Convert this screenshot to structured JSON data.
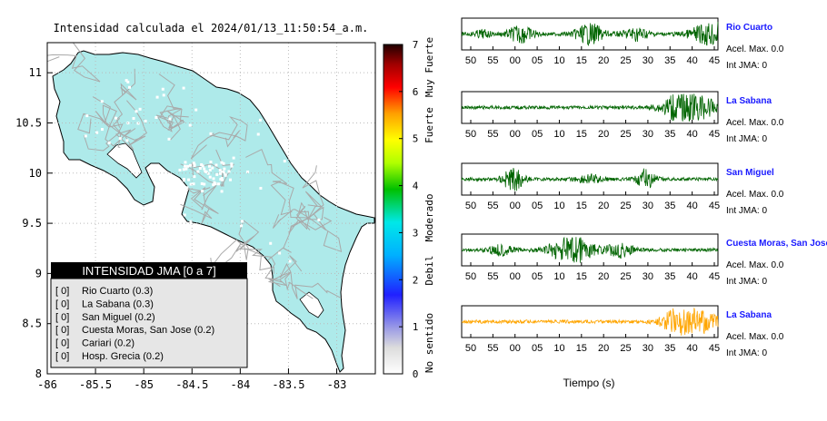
{
  "map": {
    "title": "Intensidad calculada el 2024/01/13_11:50:54_a.m.",
    "x_ticks": [
      "-86",
      "-85.5",
      "-85",
      "-84.5",
      "-84",
      "-83.5",
      "-83"
    ],
    "y_ticks": [
      "11",
      "10.5",
      "10",
      "9.5",
      "9",
      "8.5",
      "8"
    ],
    "land_color": "#aeeaea",
    "road_color": "#a9a9a9"
  },
  "legend": {
    "title": "INTENSIDAD JMA [0 a 7]",
    "items": [
      {
        "code": "[ 0]",
        "label": "Rio Cuarto (0.3)"
      },
      {
        "code": "[ 0]",
        "label": "La Sabana (0.3)"
      },
      {
        "code": "[ 0]",
        "label": "San Miguel (0.2)"
      },
      {
        "code": "[ 0]",
        "label": "Cuesta Moras, San Jose (0.2)"
      },
      {
        "code": "[ 0]",
        "label": "Cariari (0.2)"
      },
      {
        "code": "[ 0]",
        "label": "Hosp. Grecia (0.2)"
      }
    ]
  },
  "colorbar": {
    "ticks": [
      "7",
      "6",
      "5",
      "4",
      "3",
      "2",
      "1",
      "0"
    ],
    "labels": [
      "Muy Fuerte",
      "Fuerte",
      "Moderado",
      "Debil",
      "No sentido"
    ],
    "range": [
      0,
      7
    ]
  },
  "waveforms": {
    "xlabel": "Tiempo (s)",
    "panels": [
      {
        "station": "Rio Cuarto",
        "acel": "Acel. Max. 0.0",
        "int": "Int JMA: 0",
        "color": "#006400",
        "ticks": [
          "50",
          "55",
          "00",
          "05",
          "10",
          "15",
          "20",
          "25",
          "30",
          "35",
          "40",
          "45"
        ]
      },
      {
        "station": "La Sabana",
        "acel": "Acel. Max. 0.0",
        "int": "Int JMA: 0",
        "color": "#006400",
        "ticks": [
          "50",
          "55",
          "00",
          "05",
          "10",
          "15",
          "20",
          "25",
          "30",
          "35",
          "40",
          "45"
        ]
      },
      {
        "station": "San Miguel",
        "acel": "Acel. Max. 0.0",
        "int": "Int JMA: 0",
        "color": "#006400",
        "ticks": [
          "50",
          "55",
          "00",
          "05",
          "10",
          "15",
          "20",
          "25",
          "30",
          "35",
          "40",
          "45"
        ]
      },
      {
        "station": "Cuesta Moras, San Jose",
        "acel": "Acel. Max. 0.0",
        "int": "Int JMA: 0",
        "color": "#006400",
        "ticks": [
          "50",
          "55",
          "00",
          "05",
          "10",
          "15",
          "20",
          "25",
          "30",
          "35",
          "40",
          "45"
        ]
      },
      {
        "station": "La Sabana",
        "acel": "Acel. Max. 0.0",
        "int": "Int JMA: 0",
        "color": "#ffa500",
        "ticks": [
          "50",
          "55",
          "00",
          "05",
          "10",
          "15",
          "20",
          "25",
          "30",
          "35",
          "40",
          "45"
        ]
      }
    ]
  },
  "chart_data": [
    {
      "type": "heatmap",
      "title": "Intensidad calculada el 2024/01/13_11:50:54_a.m.",
      "xlim": [
        -86,
        -82.6
      ],
      "ylim": [
        8,
        11.3
      ],
      "colorbar_range": [
        0,
        7
      ]
    },
    {
      "type": "line",
      "xlabel": "Tiempo (s)",
      "series": [
        {
          "name": "Rio Cuarto",
          "acel_max": 0.0,
          "int_jma": 0
        },
        {
          "name": "La Sabana",
          "acel_max": 0.0,
          "int_jma": 0
        },
        {
          "name": "San Miguel",
          "acel_max": 0.0,
          "int_jma": 0
        },
        {
          "name": "Cuesta Moras, San Jose",
          "acel_max": 0.0,
          "int_jma": 0
        },
        {
          "name": "La Sabana",
          "acel_max": 0.0,
          "int_jma": 0
        }
      ]
    }
  ]
}
